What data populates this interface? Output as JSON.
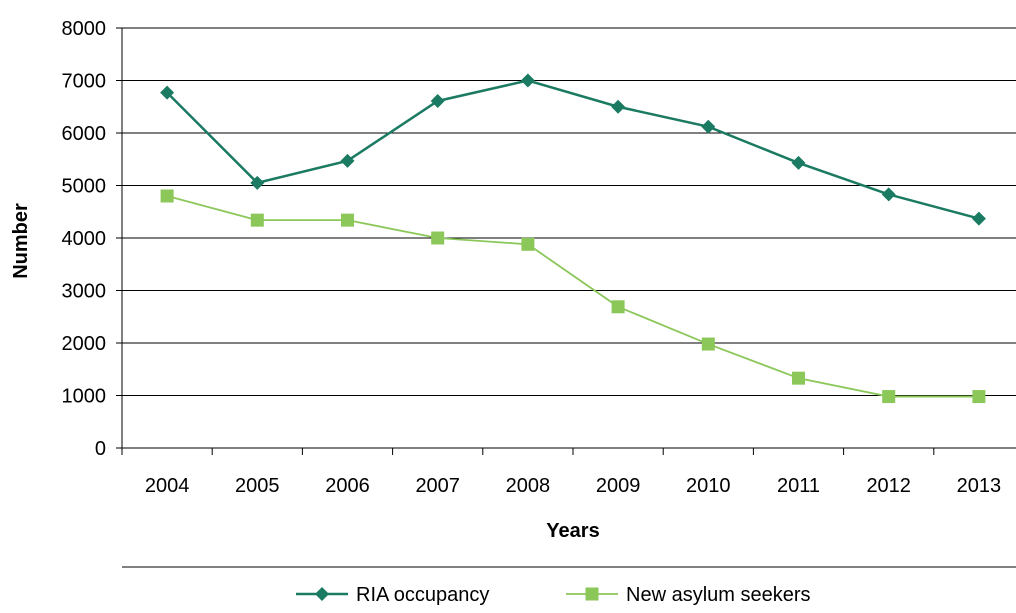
{
  "chart_data": {
    "type": "line",
    "xlabel": "Years",
    "ylabel": "Number",
    "ylim": [
      0,
      8000
    ],
    "yticks": [
      0,
      1000,
      2000,
      3000,
      4000,
      5000,
      6000,
      7000,
      8000
    ],
    "grid": "horizontal",
    "legend": "bottom",
    "categories": [
      "2004",
      "2005",
      "2006",
      "2007",
      "2008",
      "2009",
      "2010",
      "2011",
      "2012",
      "2013"
    ],
    "series": [
      {
        "name": "RIA occupancy",
        "color": "#1b7a62",
        "marker": "diamond",
        "values": [
          6770,
          5050,
          5470,
          6610,
          7000,
          6500,
          6120,
          5430,
          4830,
          4370
        ]
      },
      {
        "name": "New asylum seekers",
        "color": "#8cc75a",
        "marker": "square",
        "values": [
          4800,
          4340,
          4340,
          4000,
          3880,
          2690,
          1980,
          1330,
          980,
          980
        ]
      }
    ]
  }
}
